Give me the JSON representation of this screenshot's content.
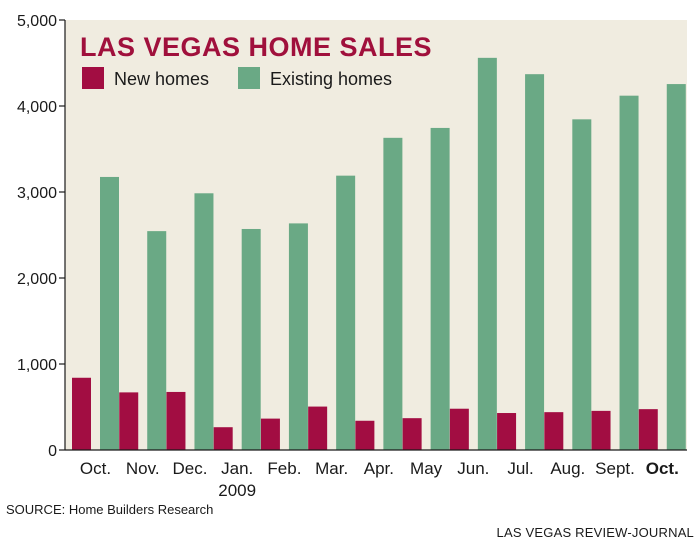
{
  "chart_data": {
    "type": "bar",
    "title": "LAS VEGAS HOME SALES",
    "categories": [
      "Oct.",
      "Nov.",
      "Dec.",
      "Jan.",
      "Feb.",
      "Mar.",
      "Apr.",
      "May",
      "Jun.",
      "Jul.",
      "Aug.",
      "Sept.",
      "Oct."
    ],
    "category_sublabels": [
      "",
      "",
      "",
      "2009",
      "",
      "",
      "",
      "",
      "",
      "",
      "",
      "",
      ""
    ],
    "highlighted_category_index": 12,
    "series": [
      {
        "name": "New homes",
        "color": "#a20d42",
        "values": [
          840,
          670,
          675,
          265,
          365,
          505,
          340,
          370,
          480,
          430,
          440,
          455,
          475
        ]
      },
      {
        "name": "Existing homes",
        "color": "#6aa985",
        "values": [
          3175,
          2545,
          2985,
          2570,
          2635,
          3190,
          3630,
          3745,
          4560,
          4370,
          3845,
          4120,
          4255
        ]
      }
    ],
    "ylim": [
      0,
      5000
    ],
    "yticks": [
      0,
      1000,
      2000,
      3000,
      4000,
      5000
    ],
    "ytick_labels": [
      "0",
      "1,000",
      "2,000",
      "3,000",
      "4,000",
      "5,000"
    ],
    "xlabel": "",
    "ylabel": "",
    "grid": false,
    "legend": "top-left",
    "background_color": "#f0ece0"
  },
  "source": "SOURCE: Home Builders Research",
  "credit": "LAS VEGAS REVIEW-JOURNAL"
}
